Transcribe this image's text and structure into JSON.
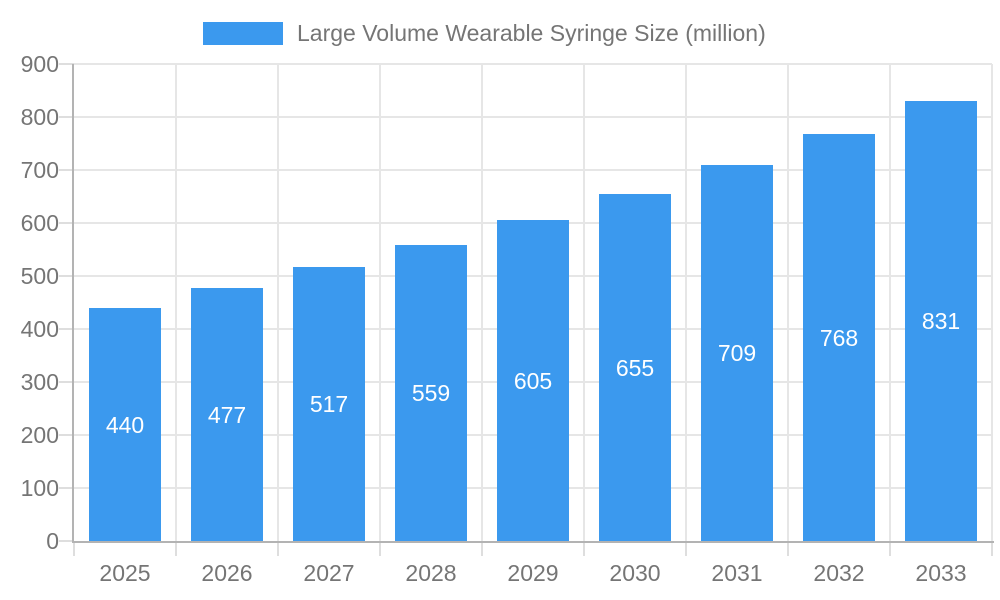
{
  "legend": {
    "label": "Large Volume Wearable Syringe Size (million)"
  },
  "chart_data": {
    "type": "bar",
    "title": "Large Volume Wearable Syringe Size (million)",
    "categories": [
      "2025",
      "2026",
      "2027",
      "2028",
      "2029",
      "2030",
      "2031",
      "2032",
      "2033"
    ],
    "values": [
      440,
      477,
      517,
      559,
      605,
      655,
      709,
      768,
      831
    ],
    "xlabel": "",
    "ylabel": "",
    "ylim": [
      0,
      900
    ],
    "ytick_step": 100,
    "yticks": [
      0,
      100,
      200,
      300,
      400,
      500,
      600,
      700,
      800,
      900
    ],
    "grid": true,
    "legend_position": "top",
    "bar_color": "#3B99EE",
    "bar_label_color": "#FFFFFF",
    "axis_text_color": "#757575",
    "gridline_color": "#E6E6E6",
    "tick_color": "#DEDEDE",
    "axis_line_color": "#B3B3B3",
    "background_color": "#FFFFFF"
  }
}
